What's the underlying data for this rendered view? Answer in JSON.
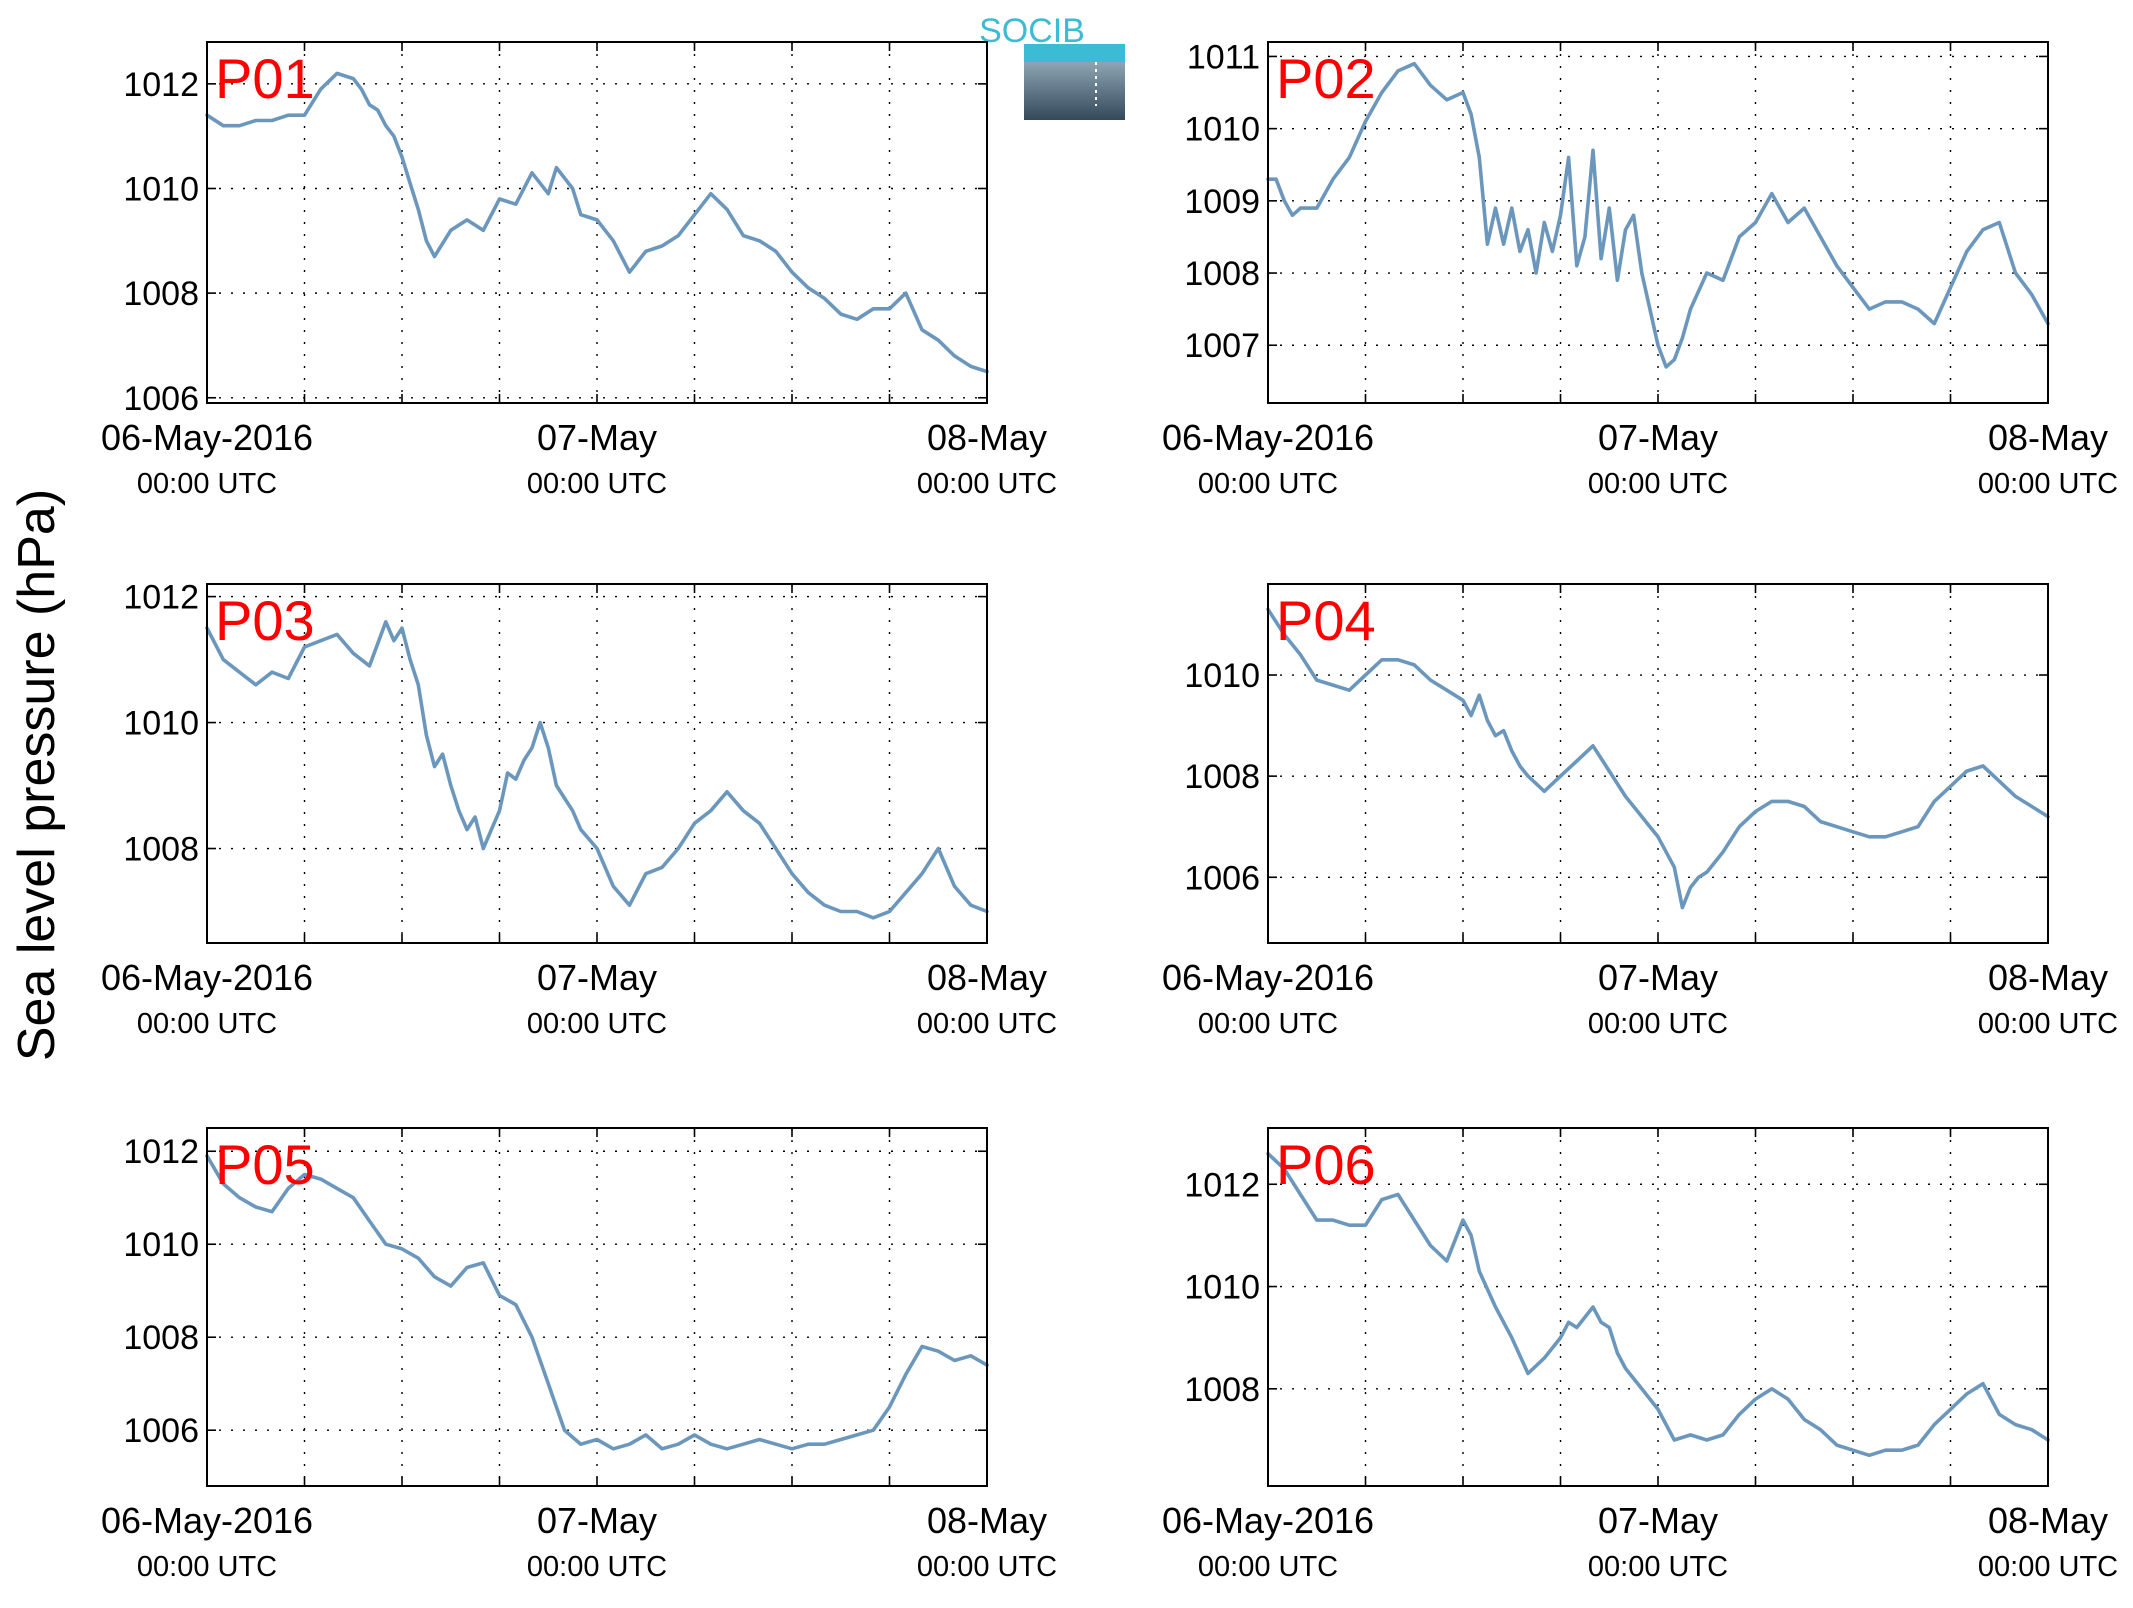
{
  "figure": {
    "ylabel": "Sea level pressure (hPa)",
    "logo_text": "SOCIB",
    "label_color": "#ff0000",
    "line_color": "#6b97bd",
    "logo_color": "#3bbcd4"
  },
  "chart_data": [
    {
      "type": "line",
      "panel_label": "P01",
      "x_ticks": [
        {
          "x": 0,
          "line1": "06-May-2016",
          "line2": "00:00 UTC"
        },
        {
          "x": 24,
          "line1": "07-May",
          "line2": "00:00 UTC"
        },
        {
          "x": 48,
          "line1": "08-May",
          "line2": "00:00 UTC"
        }
      ],
      "xlim": [
        0,
        48
      ],
      "ylim": [
        1005.9,
        1012.8
      ],
      "y_ticks": [
        1006,
        1008,
        1010,
        1012
      ],
      "grid": true,
      "series": [
        {
          "x": [
            0,
            1,
            2,
            3,
            4,
            5,
            6,
            7,
            8,
            9,
            9.5,
            10,
            10.5,
            11,
            11.5,
            12,
            12.5,
            13,
            13.5,
            14,
            15,
            16,
            17,
            18,
            19,
            20,
            21,
            21.5,
            22,
            22.5,
            23,
            24,
            25,
            26,
            27,
            28,
            29,
            30,
            31,
            32,
            33,
            34,
            35,
            36,
            37,
            38,
            39,
            40,
            41,
            42,
            43,
            44,
            45,
            46,
            47,
            48
          ],
          "y": [
            1011.4,
            1011.2,
            1011.2,
            1011.3,
            1011.3,
            1011.4,
            1011.4,
            1011.9,
            1012.2,
            1012.1,
            1011.9,
            1011.6,
            1011.5,
            1011.2,
            1011.0,
            1010.6,
            1010.1,
            1009.6,
            1009.0,
            1008.7,
            1009.2,
            1009.4,
            1009.2,
            1009.8,
            1009.7,
            1010.3,
            1009.9,
            1010.4,
            1010.2,
            1010.0,
            1009.5,
            1009.4,
            1009.0,
            1008.4,
            1008.8,
            1008.9,
            1009.1,
            1009.5,
            1009.9,
            1009.6,
            1009.1,
            1009.0,
            1008.8,
            1008.4,
            1008.1,
            1007.9,
            1007.6,
            1007.5,
            1007.7,
            1007.7,
            1008.0,
            1007.3,
            1007.1,
            1006.8,
            1006.6,
            1006.5
          ]
        }
      ]
    },
    {
      "type": "line",
      "panel_label": "P02",
      "x_ticks": [
        {
          "x": 0,
          "line1": "06-May-2016",
          "line2": "00:00 UTC"
        },
        {
          "x": 24,
          "line1": "07-May",
          "line2": "00:00 UTC"
        },
        {
          "x": 48,
          "line1": "08-May",
          "line2": "00:00 UTC"
        }
      ],
      "xlim": [
        0,
        48
      ],
      "ylim": [
        1006.2,
        1011.2
      ],
      "y_ticks": [
        1007,
        1008,
        1009,
        1010,
        1011
      ],
      "grid": true,
      "series": [
        {
          "x": [
            0,
            0.5,
            1,
            1.5,
            2,
            3,
            4,
            5,
            6,
            7,
            8,
            9,
            10,
            11,
            12,
            12.5,
            13,
            13.5,
            14,
            14.5,
            15,
            15.5,
            16,
            16.5,
            17,
            17.5,
            18,
            18.5,
            19,
            19.5,
            20,
            20.5,
            21,
            21.5,
            22,
            22.5,
            23,
            23.5,
            24,
            24.5,
            25,
            25.5,
            26,
            27,
            28,
            29,
            30,
            31,
            32,
            33,
            34,
            35,
            36,
            37,
            38,
            39,
            40,
            41,
            42,
            43,
            44,
            45,
            46,
            47,
            48
          ],
          "y": [
            1009.3,
            1009.3,
            1009.0,
            1008.8,
            1008.9,
            1008.9,
            1009.3,
            1009.6,
            1010.1,
            1010.5,
            1010.8,
            1010.9,
            1010.6,
            1010.4,
            1010.5,
            1010.2,
            1009.6,
            1008.4,
            1008.9,
            1008.4,
            1008.9,
            1008.3,
            1008.6,
            1008.0,
            1008.7,
            1008.3,
            1008.8,
            1009.6,
            1008.1,
            1008.5,
            1009.7,
            1008.2,
            1008.9,
            1007.9,
            1008.6,
            1008.8,
            1008.0,
            1007.5,
            1007.0,
            1006.7,
            1006.8,
            1007.1,
            1007.5,
            1008.0,
            1007.9,
            1008.5,
            1008.7,
            1009.1,
            1008.7,
            1008.9,
            1008.5,
            1008.1,
            1007.8,
            1007.5,
            1007.6,
            1007.6,
            1007.5,
            1007.3,
            1007.8,
            1008.3,
            1008.6,
            1008.7,
            1008.0,
            1007.7,
            1007.3
          ]
        }
      ]
    },
    {
      "type": "line",
      "panel_label": "P03",
      "x_ticks": [
        {
          "x": 0,
          "line1": "06-May-2016",
          "line2": "00:00 UTC"
        },
        {
          "x": 24,
          "line1": "07-May",
          "line2": "00:00 UTC"
        },
        {
          "x": 48,
          "line1": "08-May",
          "line2": "00:00 UTC"
        }
      ],
      "xlim": [
        0,
        48
      ],
      "ylim": [
        1006.5,
        1012.2
      ],
      "y_ticks": [
        1008,
        1010,
        1012
      ],
      "grid": true,
      "series": [
        {
          "x": [
            0,
            1,
            2,
            3,
            4,
            5,
            6,
            7,
            8,
            9,
            10,
            11,
            11.5,
            12,
            12.5,
            13,
            13.5,
            14,
            14.5,
            15,
            15.5,
            16,
            16.5,
            17,
            17.5,
            18,
            18.5,
            19,
            19.5,
            20,
            20.5,
            21,
            21.5,
            22,
            22.5,
            23,
            24,
            25,
            26,
            27,
            28,
            29,
            30,
            31,
            32,
            33,
            34,
            35,
            36,
            37,
            38,
            39,
            40,
            41,
            42,
            43,
            44,
            45,
            46,
            47,
            48
          ],
          "y": [
            1011.5,
            1011.0,
            1010.8,
            1010.6,
            1010.8,
            1010.7,
            1011.2,
            1011.3,
            1011.4,
            1011.1,
            1010.9,
            1011.6,
            1011.3,
            1011.5,
            1011.0,
            1010.6,
            1009.8,
            1009.3,
            1009.5,
            1009.0,
            1008.6,
            1008.3,
            1008.5,
            1008.0,
            1008.3,
            1008.6,
            1009.2,
            1009.1,
            1009.4,
            1009.6,
            1010.0,
            1009.6,
            1009.0,
            1008.8,
            1008.6,
            1008.3,
            1008.0,
            1007.4,
            1007.1,
            1007.6,
            1007.7,
            1008.0,
            1008.4,
            1008.6,
            1008.9,
            1008.6,
            1008.4,
            1008.0,
            1007.6,
            1007.3,
            1007.1,
            1007.0,
            1007.0,
            1006.9,
            1007.0,
            1007.3,
            1007.6,
            1008.0,
            1007.4,
            1007.1,
            1007.0
          ]
        }
      ]
    },
    {
      "type": "line",
      "panel_label": "P04",
      "x_ticks": [
        {
          "x": 0,
          "line1": "06-May-2016",
          "line2": "00:00 UTC"
        },
        {
          "x": 24,
          "line1": "07-May",
          "line2": "00:00 UTC"
        },
        {
          "x": 48,
          "line1": "08-May",
          "line2": "00:00 UTC"
        }
      ],
      "xlim": [
        0,
        48
      ],
      "ylim": [
        1004.7,
        1011.8
      ],
      "y_ticks": [
        1006,
        1008,
        1010
      ],
      "grid": true,
      "series": [
        {
          "x": [
            0,
            1,
            2,
            3,
            4,
            5,
            6,
            7,
            8,
            9,
            10,
            11,
            12,
            12.5,
            13,
            13.5,
            14,
            14.5,
            15,
            15.5,
            16,
            17,
            18,
            19,
            20,
            21,
            22,
            23,
            24,
            25,
            25.5,
            26,
            26.5,
            27,
            28,
            29,
            30,
            31,
            32,
            33,
            34,
            35,
            36,
            37,
            38,
            39,
            40,
            41,
            42,
            43,
            44,
            45,
            46,
            47,
            48
          ],
          "y": [
            1011.3,
            1010.8,
            1010.4,
            1009.9,
            1009.8,
            1009.7,
            1010.0,
            1010.3,
            1010.3,
            1010.2,
            1009.9,
            1009.7,
            1009.5,
            1009.2,
            1009.6,
            1009.1,
            1008.8,
            1008.9,
            1008.5,
            1008.2,
            1008.0,
            1007.7,
            1008.0,
            1008.3,
            1008.6,
            1008.1,
            1007.6,
            1007.2,
            1006.8,
            1006.2,
            1005.4,
            1005.8,
            1006.0,
            1006.1,
            1006.5,
            1007.0,
            1007.3,
            1007.5,
            1007.5,
            1007.4,
            1007.1,
            1007.0,
            1006.9,
            1006.8,
            1006.8,
            1006.9,
            1007.0,
            1007.5,
            1007.8,
            1008.1,
            1008.2,
            1007.9,
            1007.6,
            1007.4,
            1007.2
          ]
        }
      ]
    },
    {
      "type": "line",
      "panel_label": "P05",
      "x_ticks": [
        {
          "x": 0,
          "line1": "06-May-2016",
          "line2": "00:00 UTC"
        },
        {
          "x": 24,
          "line1": "07-May",
          "line2": "00:00 UTC"
        },
        {
          "x": 48,
          "line1": "08-May",
          "line2": "00:00 UTC"
        }
      ],
      "xlim": [
        0,
        48
      ],
      "ylim": [
        1004.8,
        1012.5
      ],
      "y_ticks": [
        1006,
        1008,
        1010,
        1012
      ],
      "grid": true,
      "series": [
        {
          "x": [
            0,
            1,
            2,
            3,
            4,
            5,
            6,
            7,
            8,
            9,
            10,
            11,
            12,
            13,
            14,
            15,
            16,
            17,
            18,
            19,
            20,
            21,
            22,
            23,
            24,
            25,
            26,
            27,
            28,
            29,
            30,
            31,
            32,
            33,
            34,
            35,
            36,
            37,
            38,
            39,
            40,
            41,
            42,
            43,
            44,
            45,
            46,
            47,
            48
          ],
          "y": [
            1011.9,
            1011.3,
            1011.0,
            1010.8,
            1010.7,
            1011.2,
            1011.5,
            1011.4,
            1011.2,
            1011.0,
            1010.5,
            1010.0,
            1009.9,
            1009.7,
            1009.3,
            1009.1,
            1009.5,
            1009.6,
            1008.9,
            1008.7,
            1008.0,
            1007.0,
            1006.0,
            1005.7,
            1005.8,
            1005.6,
            1005.7,
            1005.9,
            1005.6,
            1005.7,
            1005.9,
            1005.7,
            1005.6,
            1005.7,
            1005.8,
            1005.7,
            1005.6,
            1005.7,
            1005.7,
            1005.8,
            1005.9,
            1006.0,
            1006.5,
            1007.2,
            1007.8,
            1007.7,
            1007.5,
            1007.6,
            1007.4
          ]
        }
      ]
    },
    {
      "type": "line",
      "panel_label": "P06",
      "x_ticks": [
        {
          "x": 0,
          "line1": "06-May-2016",
          "line2": "00:00 UTC"
        },
        {
          "x": 24,
          "line1": "07-May",
          "line2": "00:00 UTC"
        },
        {
          "x": 48,
          "line1": "08-May",
          "line2": "00:00 UTC"
        }
      ],
      "xlim": [
        0,
        48
      ],
      "ylim": [
        1006.1,
        1013.1
      ],
      "y_ticks": [
        1008,
        1010,
        1012
      ],
      "grid": true,
      "series": [
        {
          "x": [
            0,
            1,
            2,
            3,
            4,
            5,
            6,
            7,
            8,
            9,
            10,
            11,
            12,
            12.5,
            13,
            14,
            15,
            16,
            17,
            18,
            18.5,
            19,
            20,
            20.5,
            21,
            21.5,
            22,
            23,
            24,
            25,
            26,
            27,
            28,
            29,
            30,
            31,
            32,
            33,
            34,
            35,
            36,
            37,
            38,
            39,
            40,
            41,
            42,
            43,
            44,
            45,
            46,
            47,
            48
          ],
          "y": [
            1012.6,
            1012.3,
            1011.8,
            1011.3,
            1011.3,
            1011.2,
            1011.2,
            1011.7,
            1011.8,
            1011.3,
            1010.8,
            1010.5,
            1011.3,
            1011.0,
            1010.3,
            1009.6,
            1009.0,
            1008.3,
            1008.6,
            1009.0,
            1009.3,
            1009.2,
            1009.6,
            1009.3,
            1009.2,
            1008.7,
            1008.4,
            1008.0,
            1007.6,
            1007.0,
            1007.1,
            1007.0,
            1007.1,
            1007.5,
            1007.8,
            1008.0,
            1007.8,
            1007.4,
            1007.2,
            1006.9,
            1006.8,
            1006.7,
            1006.8,
            1006.8,
            1006.9,
            1007.3,
            1007.6,
            1007.9,
            1008.1,
            1007.5,
            1007.3,
            1007.2,
            1007.0
          ]
        }
      ]
    }
  ]
}
